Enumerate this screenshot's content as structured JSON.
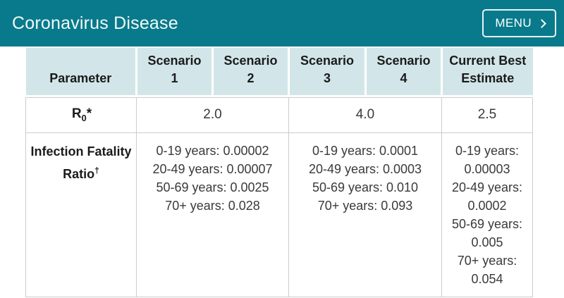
{
  "page": {
    "background": "#ffffff"
  },
  "header": {
    "title": "Coronavirus Disease",
    "menu_button": {
      "label": "MENU",
      "chevron_icon": "chevron-right"
    },
    "colors": {
      "bar": "#087a8b",
      "text": "#ffffff"
    }
  },
  "table": {
    "colors": {
      "header_bg": "#d2e6e9",
      "border": "#cccccc",
      "body_text": "#3a3a3a",
      "bold_text": "#1b1b1b"
    },
    "columns": [
      {
        "id": "parameter",
        "lines": [
          "Parameter"
        ]
      },
      {
        "id": "scenario-1",
        "lines": [
          "Scenario",
          "1"
        ]
      },
      {
        "id": "scenario-2",
        "lines": [
          "Scenario",
          "2"
        ]
      },
      {
        "id": "scenario-3",
        "lines": [
          "Scenario",
          "3"
        ]
      },
      {
        "id": "scenario-4",
        "lines": [
          "Scenario",
          "4"
        ]
      },
      {
        "id": "current-best-estimate",
        "lines": [
          "Current Best",
          "Estimate"
        ]
      }
    ],
    "rows": {
      "r0": {
        "label": {
          "base": "R",
          "sub": "0",
          "suffix": "*"
        },
        "scenario_1_2": "2.0",
        "scenario_3_4": "4.0",
        "current_best_estimate": "2.5"
      },
      "ifr": {
        "label": {
          "text": "Infection Fatality Ratio",
          "sup": "†"
        },
        "scenario_1_2": [
          "0-19 years: 0.00002",
          "20-49 years: 0.00007",
          "50-69 years: 0.0025",
          "70+ years: 0.028"
        ],
        "scenario_3_4": [
          "0-19 years: 0.0001",
          "20-49 years: 0.0003",
          "50-69 years: 0.010",
          "70+ years: 0.093"
        ],
        "current_best_estimate": [
          "0-19 years: 0.00003",
          "20-49 years: 0.0002",
          "50-69 years: 0.005",
          "70+ years: 0.054"
        ]
      }
    }
  }
}
